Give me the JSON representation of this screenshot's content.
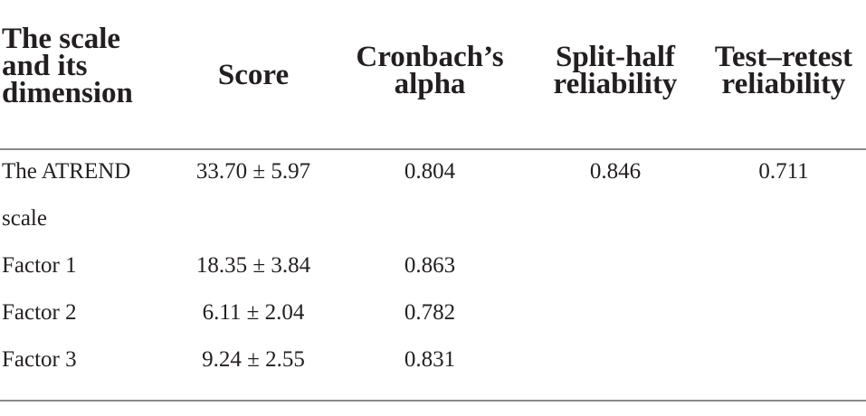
{
  "table": {
    "headers": {
      "dimension": [
        "The scale",
        "and its",
        "dimension"
      ],
      "score": "Score",
      "alpha": [
        "Cronbach’s",
        "alpha"
      ],
      "split_half": [
        "Split-half",
        "reliability"
      ],
      "test_retest": [
        "Test–retest",
        "reliability"
      ]
    },
    "rows": [
      {
        "dimension": [
          "The ATREND",
          "scale"
        ],
        "score": "33.70 ± 5.97",
        "alpha": "0.804",
        "split_half": "0.846",
        "test_retest": "0.711"
      },
      {
        "dimension": [
          "Factor 1"
        ],
        "score": "18.35 ± 3.84",
        "alpha": "0.863",
        "split_half": "",
        "test_retest": ""
      },
      {
        "dimension": [
          "Factor 2"
        ],
        "score": "6.11 ± 2.04",
        "alpha": "0.782",
        "split_half": "",
        "test_retest": ""
      },
      {
        "dimension": [
          "Factor 3"
        ],
        "score": "9.24 ± 2.55",
        "alpha": "0.831",
        "split_half": "",
        "test_retest": ""
      }
    ]
  }
}
